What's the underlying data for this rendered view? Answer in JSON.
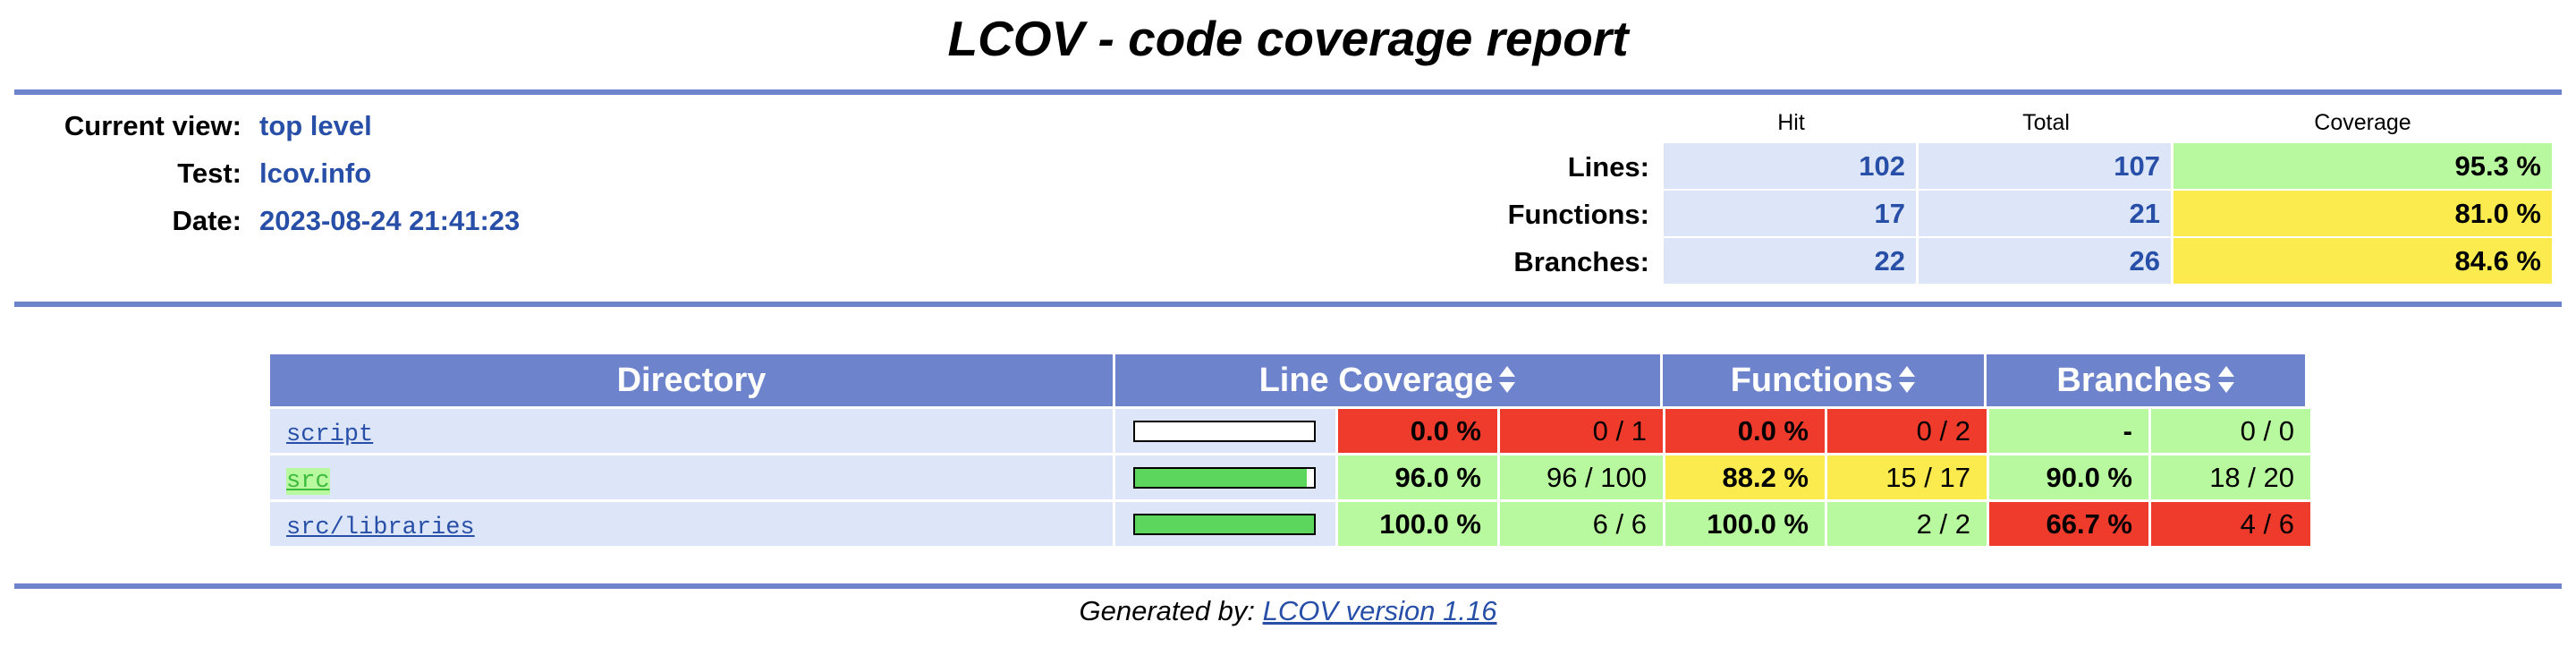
{
  "title": "LCOV - code coverage report",
  "info": {
    "current_view_label": "Current view:",
    "current_view_value": "top level",
    "test_label": "Test:",
    "test_value": "lcov.info",
    "date_label": "Date:",
    "date_value": "2023-08-24 21:41:23"
  },
  "summary": {
    "head_hit": "Hit",
    "head_total": "Total",
    "head_coverage": "Coverage",
    "rows": [
      {
        "label": "Lines:",
        "hit": "102",
        "total": "107",
        "coverage": "95.3 %",
        "color": "#b8f89e"
      },
      {
        "label": "Functions:",
        "hit": "17",
        "total": "21",
        "coverage": "81.0 %",
        "color": "#fbeb4e"
      },
      {
        "label": "Branches:",
        "hit": "22",
        "total": "26",
        "coverage": "84.6 %",
        "color": "#fbeb4e"
      }
    ]
  },
  "table": {
    "headers": {
      "directory": "Directory",
      "line_coverage": "Line Coverage",
      "functions": "Functions",
      "branches": "Branches"
    },
    "rows": [
      {
        "name": "script",
        "line_fill": 0.0,
        "line_pct": "0.0 %",
        "line_cnt": "0 / 1",
        "line_class": "red",
        "func_pct": "0.0 %",
        "func_cnt": "0 / 2",
        "func_class": "red",
        "branch_pct": "-",
        "branch_cnt": "0 / 0",
        "branch_class": "green",
        "link_green": false
      },
      {
        "name": "src",
        "line_fill": 0.96,
        "line_pct": "96.0 %",
        "line_cnt": "96 / 100",
        "line_class": "green",
        "func_pct": "88.2 %",
        "func_cnt": "15 / 17",
        "func_class": "yellow",
        "branch_pct": "90.0 %",
        "branch_cnt": "18 / 20",
        "branch_class": "green",
        "link_green": true
      },
      {
        "name": "src/libraries",
        "line_fill": 1.0,
        "line_pct": "100.0 %",
        "line_cnt": "6 / 6",
        "line_class": "green",
        "func_pct": "100.0 %",
        "func_cnt": "2 / 2",
        "func_class": "green",
        "branch_pct": "66.7 %",
        "branch_cnt": "4 / 6",
        "branch_class": "red",
        "link_green": false
      }
    ]
  },
  "footer": {
    "prefix": "Generated by: ",
    "link": "LCOV version 1.16"
  }
}
